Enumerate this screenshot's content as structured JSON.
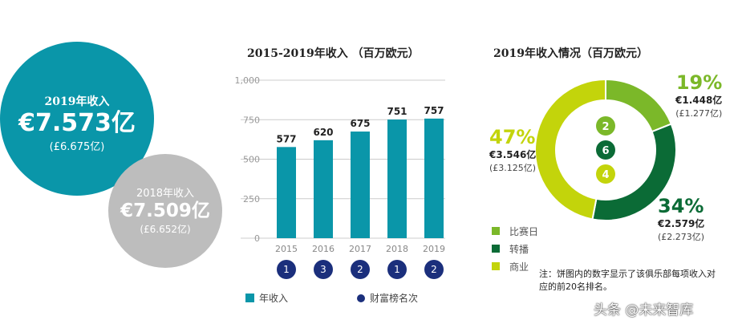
{
  "summary": {
    "current": {
      "label": "2019年收入",
      "value": "€7.573亿",
      "gbp": "(£6.675亿)",
      "color": "#0a96a9"
    },
    "previous": {
      "label": "2018年收入",
      "value": "€7.509亿",
      "gbp": "(£6.652亿)",
      "color": "#bdbdbd"
    }
  },
  "chart_data": [
    {
      "type": "bar",
      "title": "2015-2019年收入 （百万欧元）",
      "categories": [
        "2015",
        "2016",
        "2017",
        "2018",
        "2019"
      ],
      "values": [
        577,
        620,
        675,
        751,
        757
      ],
      "data_labels": [
        "577",
        "620",
        "675",
        "751",
        "757"
      ],
      "ylim": [
        0,
        1000
      ],
      "yticks": [
        "0",
        "250",
        "500",
        "750",
        "1,000"
      ],
      "grid": true,
      "ranks": [
        "1",
        "3",
        "2",
        "1",
        "2"
      ],
      "bar_color": "#0a96a9",
      "rank_color": "#1b2f7c",
      "legend": [
        "年收入",
        "财富榜名次"
      ],
      "legend_position": "bottom"
    },
    {
      "type": "pie",
      "title": "2019年收入情况（百万欧元）",
      "donut": true,
      "slices": [
        {
          "name": "比赛日",
          "percent": 19,
          "pct_label": "19%",
          "eur": "€1.448亿",
          "gbp": "(£1.277亿)",
          "rank": "2",
          "color": "#7bb829"
        },
        {
          "name": "转播",
          "percent": 34,
          "pct_label": "34%",
          "eur": "€2.579亿",
          "gbp": "(£2.273亿)",
          "rank": "6",
          "color": "#0b6b36"
        },
        {
          "name": "商业",
          "percent": 47,
          "pct_label": "47%",
          "eur": "€3.546亿",
          "gbp": "(£3.125亿)",
          "rank": "4",
          "color": "#c3d40b"
        }
      ],
      "legend_position": "bottom-left",
      "note": "注：饼图内的数字显示了该俱乐部每项收入对应的前20名排名。"
    }
  ],
  "watermark": "头条 @未来智库"
}
